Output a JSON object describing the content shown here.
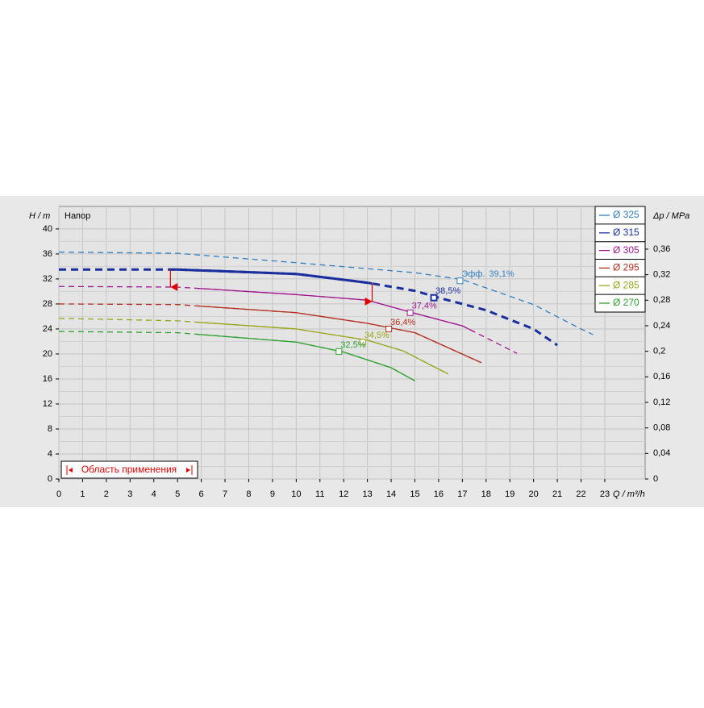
{
  "chart_data": {
    "type": "line",
    "annotation": "Напор",
    "ylabel": "H / m",
    "y2label": "Δp / MPa",
    "xlabel": "Q / m³/h",
    "range_label": "Область применения",
    "range_color": "#e00000",
    "efficiency_label": "Эфф.",
    "xlim": [
      0,
      24.7
    ],
    "ylim": [
      0,
      43.6
    ],
    "y2lim": [
      0,
      0.4269
    ],
    "xticks": [
      0,
      1,
      2,
      3,
      4,
      5,
      6,
      7,
      8,
      9,
      10,
      11,
      12,
      13,
      14,
      15,
      16,
      17,
      18,
      19,
      20,
      21,
      22,
      23
    ],
    "yticks": [
      0,
      4,
      8,
      12,
      16,
      20,
      24,
      28,
      32,
      36,
      40
    ],
    "y2ticks": [
      0,
      {
        "value": 0.04,
        "label": "0,04"
      },
      {
        "value": 0.08,
        "label": "0,08"
      },
      {
        "value": 0.12,
        "label": "0,12"
      },
      {
        "value": 0.16,
        "label": "0,16"
      },
      {
        "value": 0.2,
        "label": "0,2"
      },
      {
        "value": 0.24,
        "label": "0,24"
      },
      {
        "value": 0.28,
        "label": "0,28"
      },
      {
        "value": 0.32,
        "label": "0,32"
      },
      {
        "value": 0.36,
        "label": "0,36"
      }
    ],
    "grid": true,
    "legend": "top-right",
    "series": [
      {
        "name": "Ø 325",
        "color": "#2f7fc1",
        "x": [
          0,
          5,
          10,
          15,
          17,
          20,
          22,
          22.5
        ],
        "values": [
          36.3,
          36.1,
          34.6,
          33.0,
          31.9,
          27.9,
          24.0,
          23.1
        ],
        "efficiency": {
          "q": 16.9,
          "h": 31.7,
          "value": 39.1,
          "label": "39,1%"
        }
      },
      {
        "name": "Ø 315",
        "color": "#1a2e9e",
        "x": [
          0,
          5,
          10,
          13,
          15,
          16,
          18,
          20,
          21
        ],
        "values": [
          33.5,
          33.5,
          32.8,
          31.4,
          30.1,
          29.0,
          27.0,
          24.0,
          21.4
        ],
        "solid": [
          4.7,
          13.2
        ],
        "bold": true,
        "efficiency": {
          "q": 15.8,
          "h": 29.0,
          "value": 38.5,
          "label": "38,5%"
        }
      },
      {
        "name": "Ø 305",
        "color": "#a0178f",
        "x": [
          0,
          5,
          10,
          13,
          15,
          17,
          19.3
        ],
        "values": [
          30.8,
          30.7,
          29.5,
          28.6,
          26.5,
          24.5,
          20.1
        ],
        "solid": [
          5.8,
          17.5
        ],
        "efficiency": {
          "q": 14.8,
          "h": 26.6,
          "value": 37.4,
          "label": "37,4%"
        }
      },
      {
        "name": "Ø 295",
        "color": "#b22e1e",
        "x": [
          0,
          5,
          10,
          13,
          15,
          17.8
        ],
        "values": [
          28.0,
          27.9,
          26.6,
          24.9,
          23.4,
          18.6
        ],
        "solid": [
          5.8,
          17.8
        ],
        "efficiency": {
          "q": 13.9,
          "h": 24.0,
          "value": 36.4,
          "label": "36,4%"
        }
      },
      {
        "name": "Ø 285",
        "color": "#9aa61d",
        "x": [
          0,
          5,
          10,
          13,
          14.5,
          16.4
        ],
        "values": [
          25.7,
          25.3,
          24.0,
          22.2,
          20.5,
          16.8
        ],
        "solid": [
          5.8,
          16.4
        ],
        "efficiency": {
          "q": 12.8,
          "h": 21.9,
          "value": 34.5,
          "label": "34,5%"
        }
      },
      {
        "name": "Ø 270",
        "color": "#2ea02e",
        "x": [
          0,
          5,
          10,
          12,
          14,
          15
        ],
        "values": [
          23.6,
          23.4,
          21.9,
          20.3,
          17.8,
          15.7
        ],
        "solid": [
          5.8,
          15
        ],
        "efficiency": {
          "q": 11.8,
          "h": 20.4,
          "value": 32.5,
          "label": "32,5%"
        }
      }
    ],
    "range": [
      4.7,
      13.2
    ]
  }
}
